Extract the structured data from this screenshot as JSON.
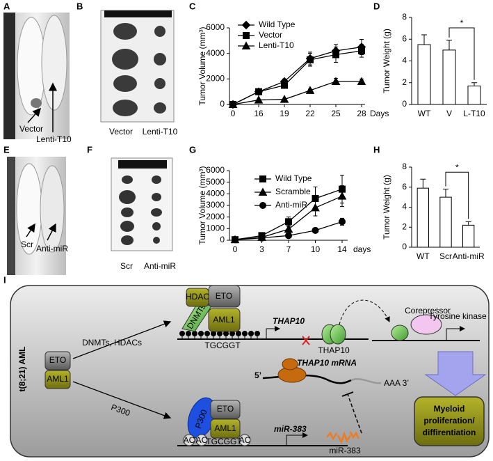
{
  "panel_labels": [
    "A",
    "B",
    "C",
    "D",
    "E",
    "F",
    "G",
    "H",
    "I"
  ],
  "photo_a": {
    "labels": [
      "Vector",
      "Lenti-T10"
    ]
  },
  "photo_b": {
    "captions": [
      "Vector",
      "Lenti-T10"
    ]
  },
  "photo_e": {
    "labels": [
      "Scr",
      "Anti-miR"
    ]
  },
  "photo_f": {
    "captions": [
      "Scr",
      "Anti-miR"
    ]
  },
  "chart_data": [
    {
      "type": "line",
      "y_label": "Tumor Volume (mm³)",
      "x_label": "Days",
      "categories": [
        "0",
        "16",
        "19",
        "22",
        "25",
        "28"
      ],
      "ylim": [
        0,
        6000
      ],
      "yticks": [
        0,
        2000,
        4000,
        6000
      ],
      "series": [
        {
          "name": "Wild Type",
          "color": "#000000",
          "marker": "diamond",
          "values": [
            0,
            1000,
            1800,
            3600,
            4200,
            4500
          ],
          "errors": [
            0,
            150,
            200,
            500,
            500,
            600
          ]
        },
        {
          "name": "Vector",
          "color": "#000000",
          "marker": "square",
          "values": [
            0,
            1000,
            1500,
            3500,
            3900,
            4200
          ],
          "errors": [
            0,
            150,
            200,
            500,
            600,
            500
          ]
        },
        {
          "name": "Lenti-T10",
          "color": "#000000",
          "marker": "triangle",
          "values": [
            0,
            350,
            400,
            1100,
            1800,
            1800
          ],
          "errors": [
            0,
            50,
            50,
            100,
            250,
            200
          ]
        }
      ]
    },
    {
      "type": "bar",
      "y_label": "Tumor Weight (g)",
      "categories": [
        "WT",
        "V",
        "L-T10"
      ],
      "values": [
        5.5,
        5.0,
        1.7
      ],
      "errors": [
        0.9,
        0.9,
        0.3
      ],
      "color": "#ffffff",
      "ylim": [
        0,
        8
      ],
      "yticks": [
        0,
        2,
        4,
        6,
        8
      ],
      "annotation": "*"
    },
    {
      "type": "line",
      "y_label": "Tumor Volume (mm³)",
      "x_label": "days",
      "categories": [
        "0",
        "3",
        "7",
        "10",
        "14"
      ],
      "ylim": [
        0,
        6000
      ],
      "yticks": [
        0,
        1000,
        2000,
        3000,
        4000,
        5000,
        6000
      ],
      "series": [
        {
          "name": "Wild Type",
          "color": "#000000",
          "marker": "square",
          "values": [
            50,
            400,
            1600,
            3600,
            4400
          ],
          "errors": [
            0,
            100,
            400,
            1000,
            1200
          ]
        },
        {
          "name": "Scramble",
          "color": "#000000",
          "marker": "triangle",
          "values": [
            50,
            250,
            950,
            2800,
            3800
          ],
          "errors": [
            0,
            100,
            300,
            700,
            900
          ]
        },
        {
          "name": "Anti-miR",
          "color": "#000000",
          "marker": "circle",
          "values": [
            50,
            200,
            400,
            850,
            1600
          ],
          "errors": [
            0,
            50,
            100,
            150,
            300
          ]
        }
      ]
    },
    {
      "type": "bar",
      "y_label": "Tumor Weight (g)",
      "categories": [
        "WT",
        "Scr",
        "Anti-miR"
      ],
      "values": [
        5.9,
        5.0,
        2.2
      ],
      "errors": [
        0.9,
        0.8,
        0.35
      ],
      "color": "#ffffff",
      "ylim": [
        0,
        8
      ],
      "yticks": [
        0,
        2,
        4,
        6,
        8
      ],
      "annotation": "*"
    }
  ],
  "diagram": {
    "title": "t(8;21) AML",
    "left_eto": "ETO",
    "left_aml1": "AML1",
    "upper_arrow": "DNMTs, HDACs",
    "lower_arrow": "P300",
    "upper_complex": {
      "hdac": "HDAC",
      "dnmts": "DNMTs",
      "eto": "ETO",
      "aml1": "AML1",
      "motif": "TGCGGT",
      "gene": "THAP10"
    },
    "thap10_protein": "THAP10",
    "corepressor": "Corepressor",
    "tyrosine_kinase": "Tyrosine kinase",
    "mrna": {
      "five_prime": "5’",
      "label": "THAP10 mRNA",
      "three_prime": "AAA 3’"
    },
    "lower_complex": {
      "p300": "P300",
      "eto": "ETO",
      "aml1": "AML1",
      "ac": [
        "AC",
        "AC",
        "AC"
      ],
      "motif": "TGCGGT",
      "gene": "miR-383"
    },
    "mirna": "miR-383",
    "outcome": [
      "Myeloid",
      "proliferation/",
      "diffirentiation"
    ]
  }
}
